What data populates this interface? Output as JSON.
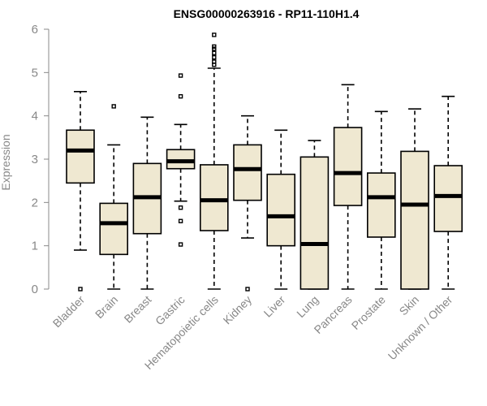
{
  "chart_data": {
    "type": "boxplot",
    "title": "ENSG00000263916 - RP11-110H1.4",
    "xlabel": "",
    "ylabel": "Expression",
    "ylim": [
      0,
      6
    ],
    "yticks": [
      0,
      1,
      2,
      3,
      4,
      5,
      6
    ],
    "box_color": "#efe8d1",
    "categories": [
      "Bladder",
      "Brain",
      "Breast",
      "Gastric",
      "Hematopoietic cells",
      "Kidney",
      "Liver",
      "Lung",
      "Pancreas",
      "Prostate",
      "Skin",
      "Unknown / Other"
    ],
    "boxes": [
      {
        "category": "Bladder",
        "whisker_low": 0.9,
        "q1": 2.45,
        "median": 3.2,
        "q3": 3.67,
        "whisker_high": 4.56,
        "outliers": [
          0
        ]
      },
      {
        "category": "Brain",
        "whisker_low": 0,
        "q1": 0.8,
        "median": 1.52,
        "q3": 1.98,
        "whisker_high": 3.33,
        "outliers": [
          4.22
        ]
      },
      {
        "category": "Breast",
        "whisker_low": 0,
        "q1": 1.28,
        "median": 2.12,
        "q3": 2.9,
        "whisker_high": 3.97,
        "outliers": []
      },
      {
        "category": "Gastric",
        "whisker_low": 2.03,
        "q1": 2.78,
        "median": 2.95,
        "q3": 3.22,
        "whisker_high": 3.8,
        "outliers": [
          1.03,
          1.57,
          1.88,
          4.45,
          4.93
        ]
      },
      {
        "category": "Hematopoietic cells",
        "whisker_low": 0,
        "q1": 1.35,
        "median": 2.05,
        "q3": 2.87,
        "whisker_high": 5.1,
        "outliers": [
          5.18,
          5.25,
          5.35,
          5.45,
          5.55,
          5.6,
          5.87
        ]
      },
      {
        "category": "Kidney",
        "whisker_low": 1.18,
        "q1": 2.05,
        "median": 2.77,
        "q3": 3.33,
        "whisker_high": 4.0,
        "outliers": [
          0
        ]
      },
      {
        "category": "Liver",
        "whisker_low": 0,
        "q1": 1.0,
        "median": 1.68,
        "q3": 2.65,
        "whisker_high": 3.67,
        "outliers": []
      },
      {
        "category": "Lung",
        "whisker_low": 0,
        "q1": 0,
        "median": 1.04,
        "q3": 3.05,
        "whisker_high": 3.43,
        "outliers": []
      },
      {
        "category": "Pancreas",
        "whisker_low": 0,
        "q1": 1.93,
        "median": 2.68,
        "q3": 3.73,
        "whisker_high": 4.72,
        "outliers": []
      },
      {
        "category": "Prostate",
        "whisker_low": 0,
        "q1": 1.2,
        "median": 2.12,
        "q3": 2.68,
        "whisker_high": 4.1,
        "outliers": []
      },
      {
        "category": "Skin",
        "whisker_low": 0,
        "q1": 0,
        "median": 1.95,
        "q3": 3.18,
        "whisker_high": 4.16,
        "outliers": []
      },
      {
        "category": "Unknown / Other",
        "whisker_low": 0,
        "q1": 1.33,
        "median": 2.15,
        "q3": 2.85,
        "whisker_high": 4.45,
        "outliers": []
      }
    ]
  }
}
